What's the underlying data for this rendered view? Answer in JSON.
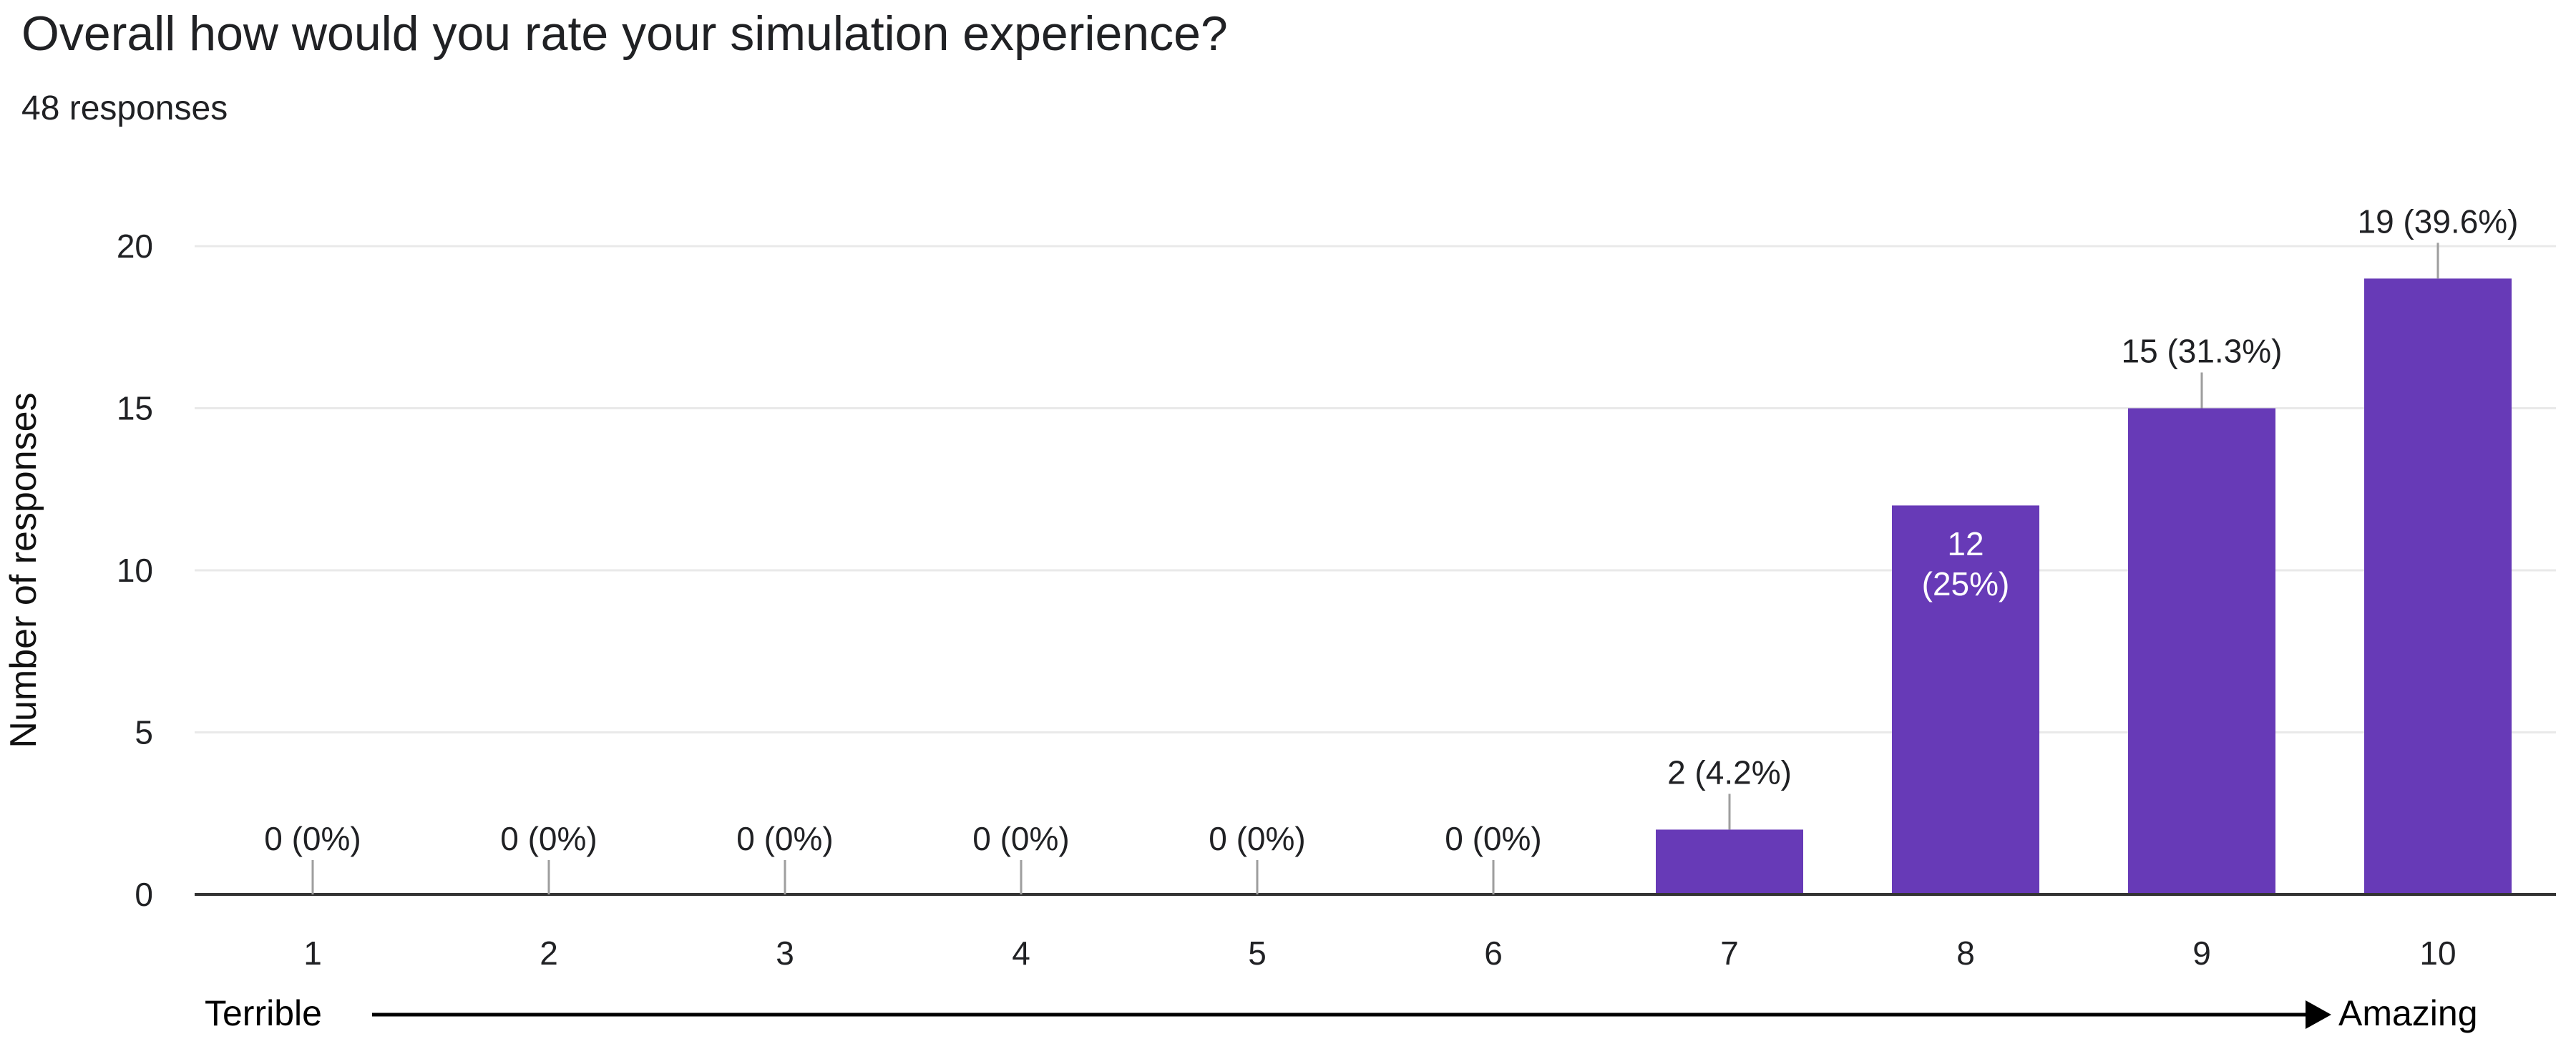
{
  "question": {
    "title": "Overall how would you rate your simulation experience?",
    "responses": "48 responses"
  },
  "colors": {
    "bar": "#673ab7",
    "gridline": "#e9e9e9",
    "axis": "#333333",
    "text": "#202124"
  },
  "chart_data": {
    "type": "bar",
    "title": "",
    "xlabel": "",
    "ylabel": "Number of responses",
    "categories": [
      "1",
      "2",
      "3",
      "4",
      "5",
      "6",
      "7",
      "8",
      "9",
      "10"
    ],
    "values": [
      0,
      0,
      0,
      0,
      0,
      0,
      2,
      12,
      15,
      19
    ],
    "data_labels": [
      "0 (0%)",
      "0 (0%)",
      "0 (0%)",
      "0 (0%)",
      "0 (0%)",
      "0 (0%)",
      "2 (4.2%)",
      "12 (25%)",
      "15 (31.3%)",
      "19 (39.6%)"
    ],
    "ylim": [
      0,
      20
    ],
    "yticks": [
      0,
      5,
      10,
      15,
      20
    ],
    "grid": true,
    "legend": "none",
    "scale_annotation": {
      "low": "Terrible",
      "high": "Amazing"
    }
  }
}
